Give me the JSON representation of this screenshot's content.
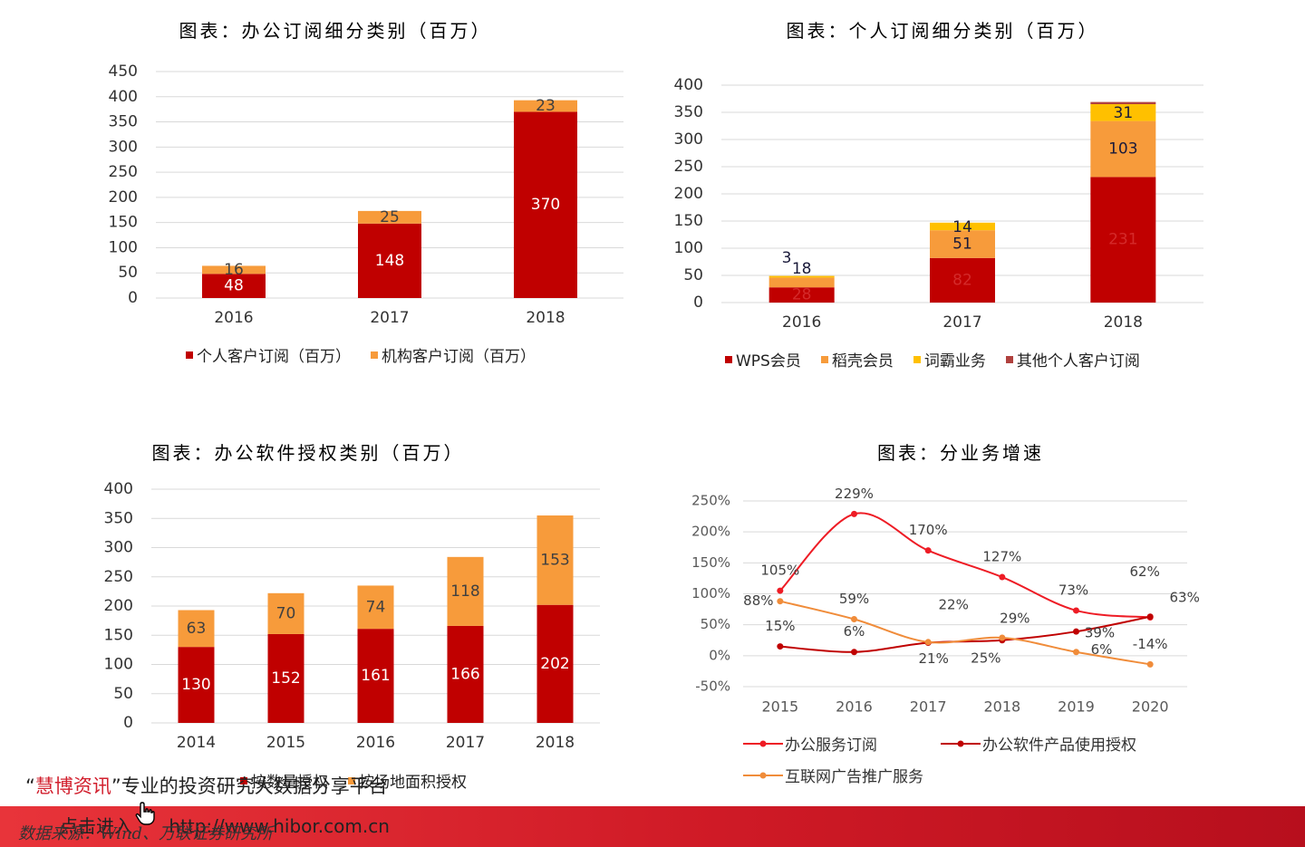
{
  "chart_data": [
    {
      "type": "bar",
      "stacked": true,
      "title": "图表：办公订阅细分类别（百万）",
      "categories": [
        "2016",
        "2017",
        "2018"
      ],
      "series": [
        {
          "name": "个人客户订阅（百万）",
          "values": [
            48,
            148,
            370
          ],
          "color": "#c00000"
        },
        {
          "name": "机构客户订阅（百万）",
          "values": [
            16,
            25,
            23
          ],
          "color": "#f79b3b"
        }
      ],
      "yticks": [
        "0",
        "50",
        "100",
        "150",
        "200",
        "250",
        "300",
        "350",
        "400",
        "450"
      ],
      "ylim": [
        0,
        450
      ],
      "grid": true,
      "legend": "bottom"
    },
    {
      "type": "bar",
      "stacked": true,
      "title": "图表：个人订阅细分类别（百万）",
      "categories": [
        "2016",
        "2017",
        "2018"
      ],
      "series": [
        {
          "name": "WPS会员",
          "values": [
            28,
            82,
            231
          ],
          "color": "#c00000"
        },
        {
          "name": "稻壳会员",
          "values": [
            18,
            51,
            103
          ],
          "color": "#f79b3b"
        },
        {
          "name": "词霸业务",
          "values": [
            3,
            14,
            31
          ],
          "color": "#ffc000"
        },
        {
          "name": "其他个人客户订阅",
          "values": [
            0,
            0,
            4
          ],
          "color": "#b0413e"
        }
      ],
      "yticks": [
        "0",
        "50",
        "100",
        "150",
        "200",
        "250",
        "300",
        "350",
        "400"
      ],
      "ylim": [
        0,
        400
      ],
      "grid": true,
      "legend": "bottom"
    },
    {
      "type": "bar",
      "stacked": true,
      "title": "图表：办公软件授权类别（百万）",
      "categories": [
        "2014",
        "2015",
        "2016",
        "2017",
        "2018"
      ],
      "series": [
        {
          "name": "按数量授权",
          "values": [
            130,
            152,
            161,
            166,
            202
          ],
          "color": "#c00000"
        },
        {
          "name": "按场地面积授权",
          "values": [
            63,
            70,
            74,
            118,
            153
          ],
          "color": "#f79b3b"
        }
      ],
      "yticks": [
        "0",
        "50",
        "100",
        "150",
        "200",
        "250",
        "300",
        "350",
        "400"
      ],
      "ylim": [
        0,
        400
      ],
      "grid": true,
      "legend": "bottom"
    },
    {
      "type": "line",
      "title": "图表：分业务增速",
      "categories": [
        "2015",
        "2016",
        "2017",
        "2018",
        "2019",
        "2020"
      ],
      "series": [
        {
          "name": "办公服务订阅",
          "values": [
            105,
            229,
            170,
            127,
            73,
            62
          ],
          "labels": [
            "105%",
            "229%",
            "170%",
            "127%",
            "73%",
            "62%"
          ],
          "color": "#ee1c25"
        },
        {
          "name": "办公软件产品使用授权",
          "values": [
            15,
            6,
            21,
            25,
            39,
            63
          ],
          "labels": [
            "15%",
            "6%",
            "21%",
            "25%",
            "39%",
            "63%"
          ],
          "color": "#c00000"
        },
        {
          "name": "互联网广告推广服务",
          "values": [
            88,
            59,
            22,
            29,
            6,
            -14
          ],
          "labels": [
            "88%",
            "59%",
            "22%",
            "29%",
            "6%",
            "-14%"
          ],
          "color": "#f08c3a"
        }
      ],
      "yticks": [
        "-50%",
        "0%",
        "50%",
        "100%",
        "150%",
        "200%",
        "250%"
      ],
      "ylim": [
        -50,
        250
      ],
      "grid": true,
      "legend": "bottom"
    }
  ],
  "watermark": {
    "quote_open": "“",
    "brand": "慧博资讯",
    "quote_close": "”",
    "slogan": "专业的投资研究大数据分享平台",
    "line2": "点击进入",
    "url": "http://www.hibor.com.cn"
  },
  "source_note": "数据来源：Wind、万联证券研究所"
}
